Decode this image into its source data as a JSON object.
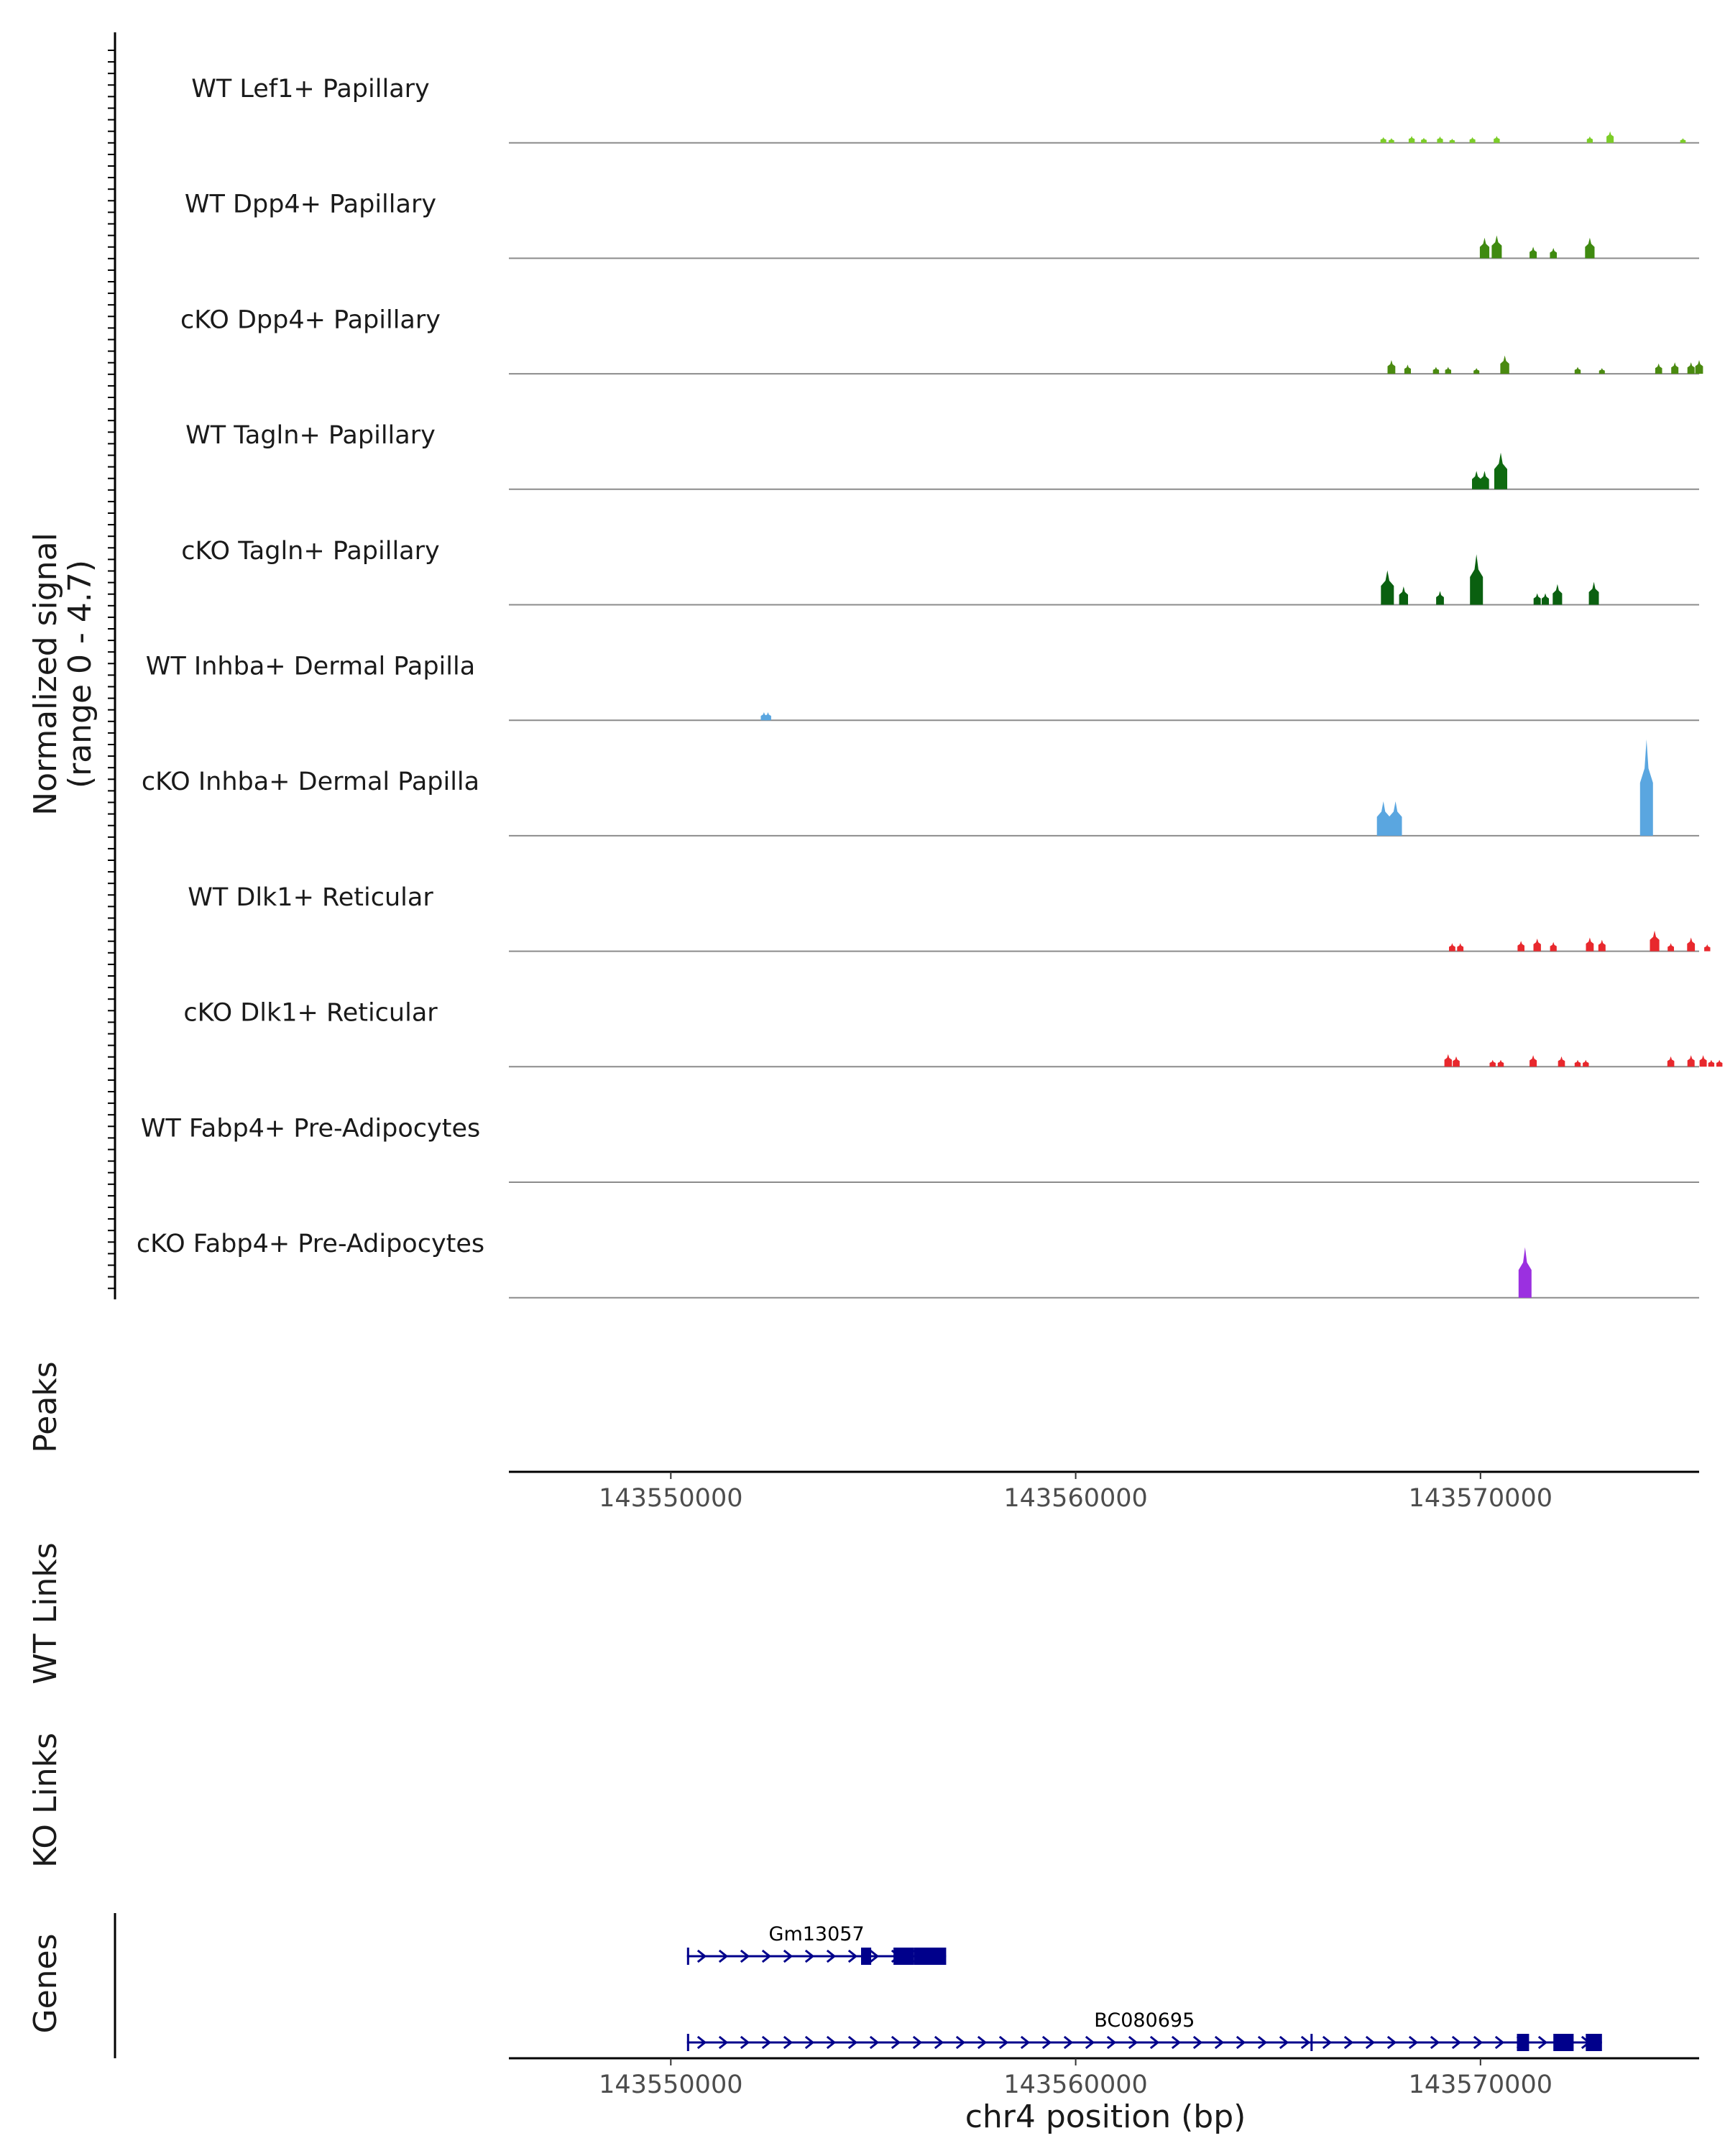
{
  "chart_data": {
    "type": "area",
    "chromosome": "chr4",
    "xlabel": "chr4 position (bp)",
    "xlim": [
      143546000,
      143575400
    ],
    "x_ticks": [
      143550000,
      143560000,
      143570000
    ],
    "y_title_line1": "Normalized signal",
    "y_title_line2": "(range 0 - 4.7)",
    "ylim": [
      0,
      4.7
    ],
    "panel_titles": {
      "peaks": "Peaks",
      "wt_links": "WT Links",
      "ko_links": "KO Links",
      "genes": "Genes"
    },
    "tracks": [
      {
        "name": "WT Lef1+ Papillary",
        "color": "#7CCD28",
        "peaks": [
          [
            143567600,
            0.25
          ],
          [
            143567800,
            0.2
          ],
          [
            143568300,
            0.3
          ],
          [
            143568600,
            0.22
          ],
          [
            143569000,
            0.28
          ],
          [
            143569300,
            0.18
          ],
          [
            143569800,
            0.25
          ],
          [
            143570400,
            0.3
          ],
          [
            143572700,
            0.28
          ],
          [
            143573200,
            0.5
          ],
          [
            143575000,
            0.2
          ]
        ]
      },
      {
        "name": "WT Dpp4+ Papillary",
        "color": "#3F8A10",
        "peaks": [
          [
            143570100,
            0.9
          ],
          [
            143570400,
            1.0
          ],
          [
            143571300,
            0.5
          ],
          [
            143571800,
            0.45
          ],
          [
            143572700,
            0.9
          ]
        ]
      },
      {
        "name": "cKO Dpp4+ Papillary",
        "color": "#4A8A10",
        "peaks": [
          [
            143567800,
            0.6
          ],
          [
            143568200,
            0.4
          ],
          [
            143568900,
            0.3
          ],
          [
            143569200,
            0.3
          ],
          [
            143569900,
            0.25
          ],
          [
            143570600,
            0.8
          ],
          [
            143572400,
            0.3
          ],
          [
            143573000,
            0.25
          ],
          [
            143574400,
            0.45
          ],
          [
            143574800,
            0.5
          ],
          [
            143575200,
            0.5
          ],
          [
            143575400,
            0.6
          ]
        ]
      },
      {
        "name": "WT Tagln+ Papillary",
        "color": "#0F6A10",
        "peaks": [
          [
            143569900,
            0.8
          ],
          [
            143570100,
            0.8
          ],
          [
            143570500,
            1.6
          ]
        ]
      },
      {
        "name": "cKO Tagln+ Papillary",
        "color": "#0A6010",
        "peaks": [
          [
            143567700,
            1.5
          ],
          [
            143568100,
            0.8
          ],
          [
            143569000,
            0.6
          ],
          [
            143569900,
            2.2
          ],
          [
            143571400,
            0.5
          ],
          [
            143571600,
            0.5
          ],
          [
            143571900,
            0.9
          ],
          [
            143572800,
            1.0
          ]
        ]
      },
      {
        "name": "WT Inhba+ Dermal Papilla",
        "color": "#5AA6E0",
        "peaks": [
          [
            143552300,
            0.35
          ],
          [
            143552400,
            0.35
          ]
        ]
      },
      {
        "name": "cKO Inhba+ Dermal Papilla",
        "color": "#5AA6E0",
        "peaks": [
          [
            143567600,
            1.5
          ],
          [
            143567900,
            1.5
          ],
          [
            143574100,
            4.2
          ]
        ]
      },
      {
        "name": "WT Dlk1+ Reticular",
        "color": "#E8282D",
        "peaks": [
          [
            143569300,
            0.35
          ],
          [
            143569500,
            0.35
          ],
          [
            143571000,
            0.45
          ],
          [
            143571400,
            0.55
          ],
          [
            143571800,
            0.4
          ],
          [
            143572700,
            0.6
          ],
          [
            143573000,
            0.5
          ],
          [
            143574300,
            0.9
          ],
          [
            143574700,
            0.35
          ],
          [
            143575200,
            0.6
          ],
          [
            143575600,
            0.3
          ]
        ]
      },
      {
        "name": "cKO Dlk1+ Reticular",
        "color": "#E8282D",
        "peaks": [
          [
            143569200,
            0.55
          ],
          [
            143569400,
            0.45
          ],
          [
            143570300,
            0.3
          ],
          [
            143570500,
            0.3
          ],
          [
            143571300,
            0.5
          ],
          [
            143572000,
            0.45
          ],
          [
            143572400,
            0.3
          ],
          [
            143572600,
            0.3
          ],
          [
            143574700,
            0.45
          ],
          [
            143575200,
            0.5
          ],
          [
            143575500,
            0.5
          ],
          [
            143575700,
            0.3
          ],
          [
            143575900,
            0.3
          ]
        ]
      },
      {
        "name": "WT Fabp4+ Pre-Adipocytes",
        "color": "#9B30E0",
        "peaks": []
      },
      {
        "name": "cKO Fabp4+ Pre-Adipocytes",
        "color": "#9B30E0",
        "peaks": [
          [
            143571100,
            2.2
          ]
        ]
      }
    ],
    "genes": [
      {
        "name": "Gm13057",
        "color": "#00008B",
        "start": 143550400,
        "end": 143556800,
        "strand": "+",
        "exons": [
          [
            143550400,
            143550450
          ],
          [
            143554700,
            143554950
          ],
          [
            143555500,
            143556000
          ],
          [
            143556000,
            143556800
          ]
        ]
      },
      {
        "name": "BC080695",
        "color": "#00008B",
        "start": 143550400,
        "end": 143573000,
        "strand": "+",
        "exons": [
          [
            143550400,
            143550450
          ],
          [
            143565800,
            143565850
          ],
          [
            143570900,
            143571200
          ],
          [
            143571800,
            143572300
          ],
          [
            143572600,
            143573000
          ]
        ]
      }
    ]
  }
}
